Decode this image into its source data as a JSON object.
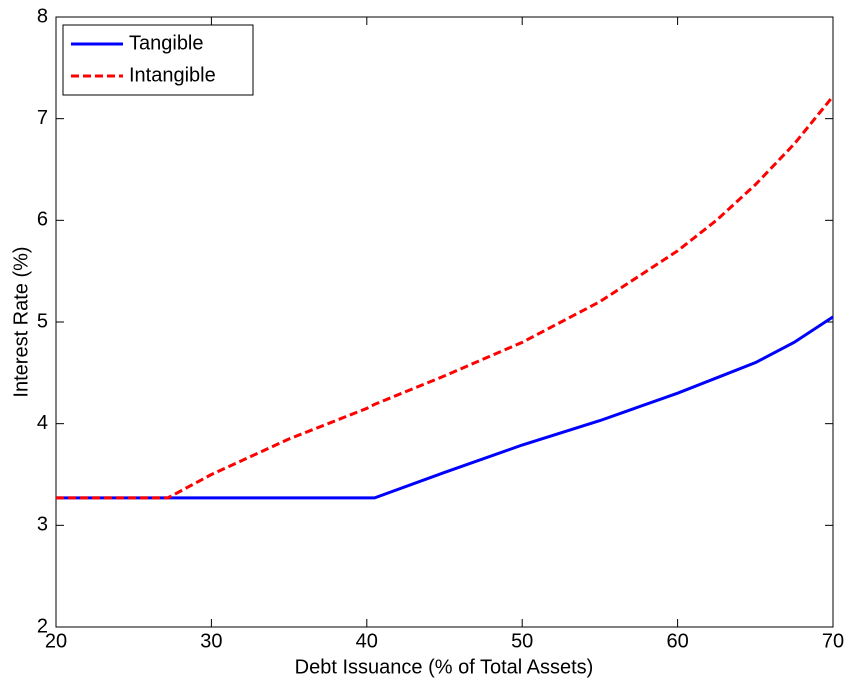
{
  "chart_data": {
    "type": "line",
    "x_label": "Debt Issuance (% of Total Assets)",
    "y_label": "Interest Rate (%)",
    "x": [
      20,
      27.2,
      30,
      35,
      40,
      40.5,
      45,
      50,
      55,
      60,
      62.5,
      65,
      67.5,
      70
    ],
    "series": [
      {
        "name": "Tangible",
        "color": "#0000ff",
        "linestyle": "solid",
        "values": [
          3.27,
          3.27,
          3.27,
          3.27,
          3.27,
          3.27,
          3.52,
          3.79,
          4.03,
          4.3,
          4.45,
          4.6,
          4.8,
          5.05
        ]
      },
      {
        "name": "Intangible",
        "color": "#ff0000",
        "linestyle": "dashed",
        "values": [
          3.27,
          3.27,
          3.5,
          3.85,
          4.15,
          4.19,
          4.47,
          4.8,
          5.2,
          5.7,
          6.0,
          6.35,
          6.75,
          7.22
        ]
      }
    ],
    "xlim": [
      20,
      70
    ],
    "xticks": [
      20,
      30,
      40,
      50,
      60,
      70
    ],
    "ylim": [
      2,
      8
    ],
    "yticks": [
      2,
      3,
      4,
      5,
      6,
      7,
      8
    ],
    "grid": false,
    "legend": "upper left"
  }
}
